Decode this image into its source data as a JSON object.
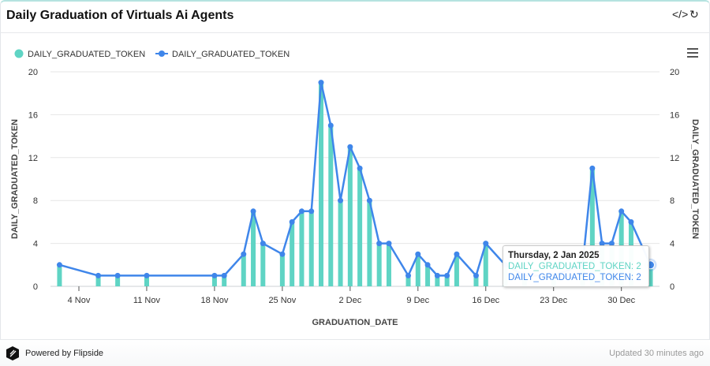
{
  "header": {
    "title": "Daily Graduation of Virtuals Ai Agents",
    "embed_icon": "code-icon",
    "refresh_icon": "refresh-icon"
  },
  "footer": {
    "powered": "Powered by Flipside",
    "updated": "Updated 30 minutes ago"
  },
  "tooltip": {
    "date": "Thursday, 2 Jan 2025",
    "bar_line": "DAILY_GRADUATED_TOKEN: 2",
    "line_line": "DAILY_GRADUATED_TOKEN: 2"
  },
  "chart_data": {
    "type": "bar+line",
    "xlabel": "GRADUATION_DATE",
    "ylabel_left": "DAILY_GRADUATED_TOKEN",
    "ylabel_right": "DAILY_GRADUATED_TOKEN",
    "ylim": [
      0,
      20
    ],
    "yticks": [
      0,
      4,
      8,
      12,
      16,
      20
    ],
    "xticks": [
      {
        "date": "2024-11-04",
        "label": "4 Nov"
      },
      {
        "date": "2024-11-11",
        "label": "11 Nov"
      },
      {
        "date": "2024-11-18",
        "label": "18 Nov"
      },
      {
        "date": "2024-11-25",
        "label": "25 Nov"
      },
      {
        "date": "2024-12-02",
        "label": "2 Dec"
      },
      {
        "date": "2024-12-09",
        "label": "9 Dec"
      },
      {
        "date": "2024-12-16",
        "label": "16 Dec"
      },
      {
        "date": "2024-12-23",
        "label": "23 Dec"
      },
      {
        "date": "2024-12-30",
        "label": "30 Dec"
      }
    ],
    "grid": true,
    "legend_placement": "top-left",
    "colors": {
      "bar": "#5fd4c4",
      "line": "#3f86ea"
    },
    "series": [
      {
        "name": "DAILY_GRADUATED_TOKEN",
        "type": "bar"
      },
      {
        "name": "DAILY_GRADUATED_TOKEN",
        "type": "line"
      }
    ],
    "x": [
      "2024-11-02",
      "2024-11-06",
      "2024-11-08",
      "2024-11-11",
      "2024-11-18",
      "2024-11-19",
      "2024-11-21",
      "2024-11-22",
      "2024-11-23",
      "2024-11-25",
      "2024-11-26",
      "2024-11-27",
      "2024-11-28",
      "2024-11-29",
      "2024-11-30",
      "2024-12-01",
      "2024-12-02",
      "2024-12-03",
      "2024-12-04",
      "2024-12-05",
      "2024-12-06",
      "2024-12-08",
      "2024-12-09",
      "2024-12-10",
      "2024-12-11",
      "2024-12-12",
      "2024-12-13",
      "2024-12-15",
      "2024-12-16",
      "2024-12-18",
      "2024-12-20",
      "2024-12-23",
      "2024-12-26",
      "2024-12-27",
      "2024-12-28",
      "2024-12-29",
      "2024-12-30",
      "2024-12-31",
      "2025-01-02"
    ],
    "values": [
      2,
      1,
      1,
      1,
      1,
      1,
      3,
      7,
      4,
      3,
      6,
      7,
      7,
      19,
      15,
      8,
      13,
      11,
      8,
      4,
      4,
      1,
      3,
      2,
      1,
      1,
      3,
      1,
      4,
      2,
      1,
      1,
      2,
      11,
      4,
      4,
      7,
      6,
      2
    ]
  }
}
